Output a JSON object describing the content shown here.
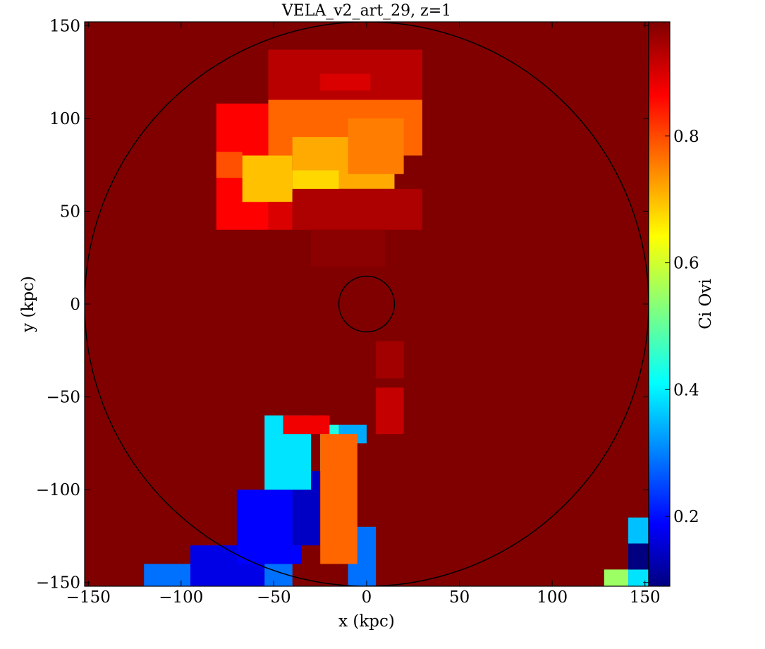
{
  "chart_data": {
    "type": "heatmap",
    "title": "VELA_v2_art_29, z=1",
    "xlabel": "x  (kpc)",
    "ylabel": "y  (kpc)",
    "colorbar_label": "Ci Ovi",
    "xlim": [
      -152,
      152
    ],
    "ylim": [
      -152,
      152
    ],
    "x_ticks": [
      -150,
      -100,
      -50,
      0,
      50,
      100,
      150
    ],
    "y_ticks": [
      -150,
      -100,
      -50,
      0,
      50,
      100,
      150
    ],
    "x_tick_labels": [
      "−150",
      "−100",
      "−50",
      "0",
      "50",
      "100",
      "150"
    ],
    "y_tick_labels": [
      "−150",
      "−100",
      "−50",
      "0",
      "50",
      "100",
      "150"
    ],
    "colorbar_range": [
      0.09,
      0.98
    ],
    "colorbar_ticks": [
      0.2,
      0.4,
      0.6,
      0.8
    ],
    "colorbar_tick_labels": [
      "0.2",
      "0.4",
      "0.6",
      "0.8"
    ],
    "colormap": "jet",
    "background_value": 0.98,
    "circles": [
      {
        "center": [
          0,
          0
        ],
        "radius_kpc": 152
      },
      {
        "center": [
          0,
          0
        ],
        "radius_kpc": 15
      }
    ],
    "regions": [
      {
        "x": [
          -53,
          30
        ],
        "y": [
          110,
          137
        ],
        "value": 0.93
      },
      {
        "x": [
          -25,
          2
        ],
        "y": [
          115,
          124
        ],
        "value": 0.9
      },
      {
        "x": [
          -81,
          -53
        ],
        "y": [
          40,
          108
        ],
        "value": 0.87
      },
      {
        "x": [
          -81,
          -67
        ],
        "y": [
          68,
          82
        ],
        "value": 0.8
      },
      {
        "x": [
          -67,
          -40
        ],
        "y": [
          55,
          80
        ],
        "value": 0.7
      },
      {
        "x": [
          -53,
          30
        ],
        "y": [
          80,
          110
        ],
        "value": 0.78
      },
      {
        "x": [
          -40,
          15
        ],
        "y": [
          62,
          90
        ],
        "value": 0.72
      },
      {
        "x": [
          -40,
          -15
        ],
        "y": [
          60,
          72
        ],
        "value": 0.68
      },
      {
        "x": [
          -10,
          20
        ],
        "y": [
          70,
          100
        ],
        "value": 0.76
      },
      {
        "x": [
          -53,
          -40
        ],
        "y": [
          40,
          55
        ],
        "value": 0.9
      },
      {
        "x": [
          -40,
          30
        ],
        "y": [
          40,
          62
        ],
        "value": 0.94
      },
      {
        "x": [
          -30,
          10
        ],
        "y": [
          20,
          40
        ],
        "value": 0.97
      },
      {
        "x": [
          -120,
          -40
        ],
        "y": [
          -152,
          -140
        ],
        "value": 0.3
      },
      {
        "x": [
          -95,
          -55
        ],
        "y": [
          -152,
          -130
        ],
        "value": 0.18
      },
      {
        "x": [
          -70,
          -35
        ],
        "y": [
          -140,
          -100
        ],
        "value": 0.2
      },
      {
        "x": [
          -40,
          -25
        ],
        "y": [
          -130,
          -90
        ],
        "value": 0.15
      },
      {
        "x": [
          -55,
          -30
        ],
        "y": [
          -100,
          -60
        ],
        "value": 0.4
      },
      {
        "x": [
          -25,
          -15
        ],
        "y": [
          -90,
          -65
        ],
        "value": 0.45
      },
      {
        "x": [
          -15,
          0
        ],
        "y": [
          -75,
          -65
        ],
        "value": 0.35
      },
      {
        "x": [
          -10,
          5
        ],
        "y": [
          -152,
          -120
        ],
        "value": 0.3
      },
      {
        "x": [
          -25,
          -5
        ],
        "y": [
          -140,
          -70
        ],
        "value": 0.78
      },
      {
        "x": [
          -45,
          -20
        ],
        "y": [
          -70,
          -60
        ],
        "value": 0.88
      },
      {
        "x": [
          5,
          20
        ],
        "y": [
          -70,
          -45
        ],
        "value": 0.92
      },
      {
        "x": [
          5,
          20
        ],
        "y": [
          -40,
          -20
        ],
        "value": 0.95
      },
      {
        "x": [
          128,
          141
        ],
        "y": [
          -152,
          -143
        ],
        "value": 0.56
      },
      {
        "x": [
          141,
          152
        ],
        "y": [
          -152,
          -143
        ],
        "value": 0.4
      },
      {
        "x": [
          141,
          152
        ],
        "y": [
          -143,
          -129
        ],
        "value": 0.09
      },
      {
        "x": [
          141,
          152
        ],
        "y": [
          -129,
          -115
        ],
        "value": 0.37
      }
    ]
  }
}
